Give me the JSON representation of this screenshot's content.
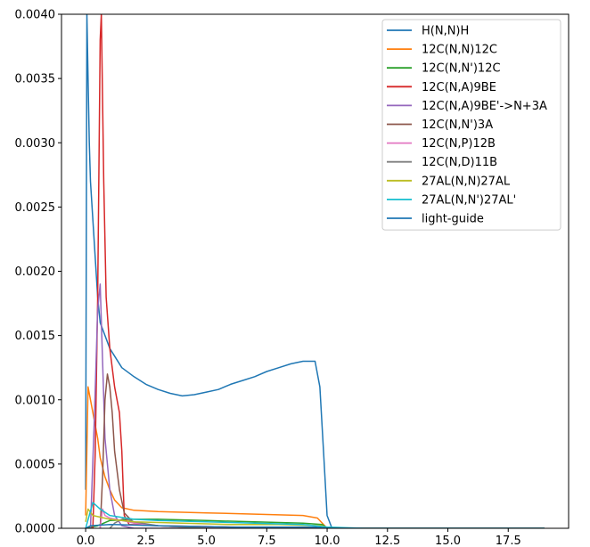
{
  "chart_data": {
    "type": "line",
    "title": "",
    "xlabel": "",
    "ylabel": "",
    "xlim": [
      -1.0,
      20.0
    ],
    "ylim": [
      0,
      0.004
    ],
    "x_ticks": [
      0.0,
      2.5,
      5.0,
      7.5,
      10.0,
      12.5,
      15.0,
      17.5
    ],
    "x_tick_labels": [
      "0.0",
      "2.5",
      "5.0",
      "7.5",
      "10.0",
      "12.5",
      "15.0",
      "17.5"
    ],
    "y_ticks": [
      0.0,
      0.0005,
      0.001,
      0.0015,
      0.002,
      0.0025,
      0.003,
      0.0035,
      0.004
    ],
    "y_tick_labels": [
      "0.0000",
      "0.0005",
      "0.0010",
      "0.0015",
      "0.0020",
      "0.0025",
      "0.0030",
      "0.0035",
      "0.0040"
    ],
    "grid": false,
    "legend_position": "top-right",
    "series": [
      {
        "name": "H(N,N)H",
        "color": "#1f77b4",
        "points": [
          [
            0.0,
            0.0003
          ],
          [
            0.05,
            0.004
          ],
          [
            0.1,
            0.0035
          ],
          [
            0.15,
            0.003
          ],
          [
            0.2,
            0.0027
          ],
          [
            0.3,
            0.0024
          ],
          [
            0.4,
            0.0021
          ],
          [
            0.5,
            0.0018
          ],
          [
            0.6,
            0.0016
          ],
          [
            0.8,
            0.0015
          ],
          [
            1.0,
            0.0014
          ],
          [
            1.5,
            0.00125
          ],
          [
            2.0,
            0.00118
          ],
          [
            2.5,
            0.00112
          ],
          [
            3.0,
            0.00108
          ],
          [
            3.5,
            0.00105
          ],
          [
            4.0,
            0.00103
          ],
          [
            4.5,
            0.00104
          ],
          [
            5.0,
            0.00106
          ],
          [
            5.5,
            0.00108
          ],
          [
            6.0,
            0.00112
          ],
          [
            6.5,
            0.00115
          ],
          [
            7.0,
            0.00118
          ],
          [
            7.5,
            0.00122
          ],
          [
            8.0,
            0.00125
          ],
          [
            8.5,
            0.00128
          ],
          [
            9.0,
            0.0013
          ],
          [
            9.5,
            0.0013
          ],
          [
            9.7,
            0.0011
          ],
          [
            9.85,
            0.0006
          ],
          [
            10.0,
            0.0001
          ],
          [
            10.2,
            0.0
          ],
          [
            19.0,
            0.0
          ]
        ]
      },
      {
        "name": "12C(N,N)12C",
        "color": "#ff7f0e",
        "points": [
          [
            0.0,
            0.0001
          ],
          [
            0.1,
            0.0011
          ],
          [
            0.2,
            0.001
          ],
          [
            0.3,
            0.0009
          ],
          [
            0.4,
            0.0008
          ],
          [
            0.5,
            0.0007
          ],
          [
            0.6,
            0.00055
          ],
          [
            0.8,
            0.0004
          ],
          [
            1.0,
            0.0003
          ],
          [
            1.2,
            0.00022
          ],
          [
            1.5,
            0.00016
          ],
          [
            2.0,
            0.00014
          ],
          [
            3.0,
            0.00013
          ],
          [
            5.0,
            0.00012
          ],
          [
            7.0,
            0.00011
          ],
          [
            9.0,
            0.0001
          ],
          [
            9.6,
            8e-05
          ],
          [
            10.0,
            0.0
          ],
          [
            19.0,
            0.0
          ]
        ]
      },
      {
        "name": "12C(N,N')12C",
        "color": "#2ca02c",
        "points": [
          [
            0.0,
            0.0
          ],
          [
            0.5,
            2e-05
          ],
          [
            1.0,
            6e-05
          ],
          [
            2.0,
            7e-05
          ],
          [
            3.0,
            7e-05
          ],
          [
            5.0,
            6e-05
          ],
          [
            7.0,
            5e-05
          ],
          [
            9.0,
            4e-05
          ],
          [
            9.8,
            3e-05
          ],
          [
            10.0,
            0.0
          ],
          [
            19.0,
            0.0
          ]
        ]
      },
      {
        "name": "12C(N,A)9BE",
        "color": "#d62728",
        "points": [
          [
            0.3,
            0.0
          ],
          [
            0.4,
            0.0006
          ],
          [
            0.5,
            0.0018
          ],
          [
            0.6,
            0.0038
          ],
          [
            0.65,
            0.004
          ],
          [
            0.75,
            0.0027
          ],
          [
            0.85,
            0.0018
          ],
          [
            1.0,
            0.0014
          ],
          [
            1.2,
            0.0011
          ],
          [
            1.4,
            0.0009
          ],
          [
            1.5,
            0.0006
          ],
          [
            1.6,
            0.0001
          ],
          [
            1.8,
            3e-05
          ],
          [
            3.0,
            2e-05
          ],
          [
            6.0,
            1e-05
          ],
          [
            9.5,
            0.0
          ],
          [
            19.0,
            0.0
          ]
        ]
      },
      {
        "name": "12C(N,A)9BE'->N+3A",
        "color": "#9467bd",
        "points": [
          [
            0.2,
            0.0
          ],
          [
            0.35,
            0.0008
          ],
          [
            0.5,
            0.0017
          ],
          [
            0.6,
            0.0019
          ],
          [
            0.7,
            0.0013
          ],
          [
            0.8,
            0.0007
          ],
          [
            1.0,
            0.0003
          ],
          [
            1.2,
            0.0001
          ],
          [
            1.5,
            2e-05
          ],
          [
            2.0,
            0.0
          ],
          [
            19.0,
            0.0
          ]
        ]
      },
      {
        "name": "12C(N,N')3A",
        "color": "#8c564b",
        "points": [
          [
            0.6,
            0.0
          ],
          [
            0.7,
            0.0004
          ],
          [
            0.8,
            0.001
          ],
          [
            0.9,
            0.0012
          ],
          [
            1.0,
            0.0011
          ],
          [
            1.1,
            0.0009
          ],
          [
            1.2,
            0.0006
          ],
          [
            1.4,
            0.0003
          ],
          [
            1.6,
            0.00012
          ],
          [
            2.0,
            4e-05
          ],
          [
            3.0,
            2e-05
          ],
          [
            5.0,
            0.0
          ],
          [
            19.0,
            0.0
          ]
        ]
      },
      {
        "name": "12C(N,P)12B",
        "color": "#e377c2",
        "points": [
          [
            0.6,
            0.0
          ],
          [
            0.7,
            0.00015
          ],
          [
            0.8,
            0.0001
          ],
          [
            1.0,
            8e-05
          ],
          [
            1.5,
            6e-05
          ],
          [
            2.0,
            4e-05
          ],
          [
            3.0,
            2e-05
          ],
          [
            5.0,
            0.0
          ],
          [
            19.0,
            0.0
          ]
        ]
      },
      {
        "name": "12C(N,D)11B",
        "color": "#7f7f7f",
        "points": [
          [
            1.0,
            0.0
          ],
          [
            1.2,
            4e-05
          ],
          [
            1.6,
            8e-05
          ],
          [
            2.0,
            5e-05
          ],
          [
            3.0,
            2e-05
          ],
          [
            5.0,
            0.0
          ],
          [
            19.0,
            0.0
          ]
        ]
      },
      {
        "name": "27AL(N,N)27AL",
        "color": "#bcbd22",
        "points": [
          [
            0.0,
            5e-05
          ],
          [
            0.1,
            0.00015
          ],
          [
            0.3,
            0.0001
          ],
          [
            1.0,
            7e-05
          ],
          [
            2.0,
            5e-05
          ],
          [
            4.0,
            4e-05
          ],
          [
            6.0,
            3e-05
          ],
          [
            8.0,
            3e-05
          ],
          [
            9.8,
            2e-05
          ],
          [
            10.0,
            0.0
          ],
          [
            19.0,
            0.0
          ]
        ]
      },
      {
        "name": "27AL(N,N')27AL'",
        "color": "#17becf",
        "points": [
          [
            0.0,
            0.0
          ],
          [
            0.3,
            0.0002
          ],
          [
            0.6,
            0.00015
          ],
          [
            1.0,
            0.0001
          ],
          [
            2.0,
            7e-05
          ],
          [
            3.0,
            6e-05
          ],
          [
            5.0,
            5e-05
          ],
          [
            7.0,
            4e-05
          ],
          [
            9.0,
            3e-05
          ],
          [
            10.0,
            1e-05
          ],
          [
            11.5,
            0.0
          ],
          [
            19.0,
            0.0
          ]
        ]
      },
      {
        "name": "light-guide",
        "color": "#1f77b4",
        "points": [
          [
            0.0,
            0.0
          ],
          [
            0.2,
            2e-05
          ],
          [
            1.0,
            3e-05
          ],
          [
            3.0,
            2e-05
          ],
          [
            6.0,
            1e-05
          ],
          [
            9.5,
            1e-05
          ],
          [
            10.0,
            0.0
          ],
          [
            19.0,
            0.0
          ]
        ]
      }
    ]
  }
}
